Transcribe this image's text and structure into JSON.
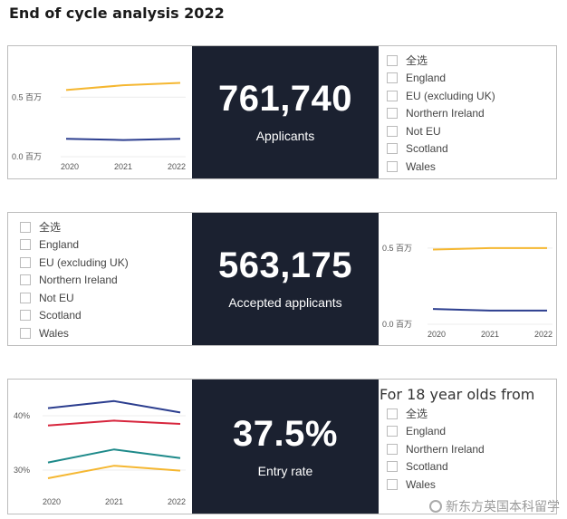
{
  "page": {
    "title": "End of cycle analysis 2022"
  },
  "panel1": {
    "kpi_value": "761,740",
    "kpi_label": "Applicants",
    "chart": {
      "y_ticks": [
        "0.5 百万",
        "0.0 百万"
      ],
      "x_ticks": [
        "2020",
        "2021",
        "2022"
      ]
    },
    "slicer": [
      "全选",
      "England",
      "EU (excluding UK)",
      "Northern Ireland",
      "Not EU",
      "Scotland",
      "Wales"
    ]
  },
  "panel2": {
    "kpi_value": "563,175",
    "kpi_label": "Accepted applicants",
    "chart": {
      "y_ticks": [
        "0.5 百万",
        "0.0 百万"
      ],
      "x_ticks": [
        "2020",
        "2021",
        "2022"
      ]
    },
    "slicer": [
      "全选",
      "England",
      "EU (excluding UK)",
      "Northern Ireland",
      "Not EU",
      "Scotland",
      "Wales"
    ]
  },
  "panel3": {
    "kpi_value": "37.5%",
    "kpi_label": "Entry rate",
    "chart": {
      "y_ticks": [
        "40%",
        "30%"
      ],
      "x_ticks": [
        "2020",
        "2021",
        "2022"
      ]
    },
    "slicer_header": "For 18 year olds from",
    "slicer": [
      "全选",
      "England",
      "Northern Ireland",
      "Scotland",
      "Wales"
    ]
  },
  "chart_data": [
    {
      "type": "line",
      "x": [
        "2020",
        "2021",
        "2022"
      ],
      "ylim": [
        0,
        0.7
      ],
      "ylabel": "",
      "xlabel": "",
      "y_ticks": [
        0,
        0.5
      ],
      "colors": [
        "#f5b731",
        "#2c3e8f"
      ],
      "series": [
        {
          "values": [
            0.56,
            0.6,
            0.62
          ]
        },
        {
          "values": [
            0.15,
            0.14,
            0.15
          ]
        }
      ]
    },
    {
      "type": "line",
      "x": [
        "2020",
        "2021",
        "2022"
      ],
      "ylim": [
        0,
        0.6
      ],
      "ylabel": "",
      "xlabel": "",
      "y_ticks": [
        0,
        0.5
      ],
      "colors": [
        "#f5b731",
        "#2c3e8f"
      ],
      "series": [
        {
          "values": [
            0.49,
            0.5,
            0.5
          ]
        },
        {
          "values": [
            0.1,
            0.09,
            0.09
          ]
        }
      ]
    },
    {
      "type": "line",
      "x": [
        "2020",
        "2021",
        "2022"
      ],
      "ylim": [
        26,
        44
      ],
      "ylabel": "",
      "xlabel": "",
      "y_ticks": [
        30,
        40
      ],
      "colors": [
        "#2c3e8f",
        "#d7263d",
        "#1e8a8a",
        "#f5b731"
      ],
      "series": [
        {
          "values": [
            41.4,
            42.7,
            40.6
          ]
        },
        {
          "values": [
            38.2,
            39.1,
            38.5
          ]
        },
        {
          "values": [
            31.4,
            33.8,
            32.2
          ]
        },
        {
          "values": [
            28.5,
            30.8,
            29.9
          ]
        }
      ]
    }
  ],
  "watermark": {
    "text": "新东方英国本科留学"
  }
}
